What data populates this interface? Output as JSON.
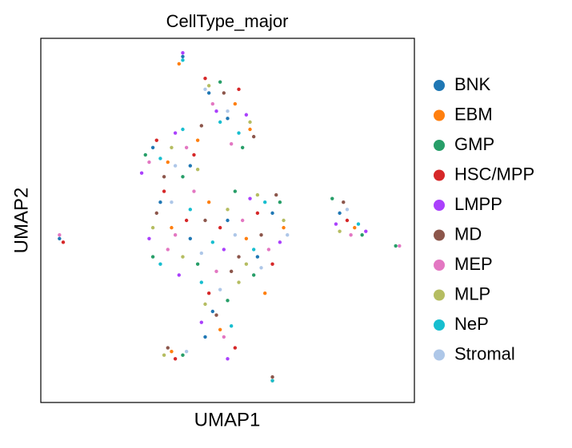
{
  "chart_data": {
    "type": "scatter",
    "title": "CellType_major",
    "x_label": "UMAP1",
    "y_label": "UMAP2",
    "xlim": [
      0,
      100
    ],
    "ylim": [
      0,
      100
    ],
    "series": [
      {
        "name": "BNK",
        "color": "#1f77b4",
        "x": [
          38,
          30,
          40,
          45,
          50,
          32,
          40,
          50,
          58,
          62,
          46,
          80,
          5,
          44
        ],
        "y": [
          95,
          70,
          65,
          85,
          78,
          55,
          45,
          50,
          40,
          52,
          25,
          52,
          45,
          18
        ]
      },
      {
        "name": "EBM",
        "color": "#ff7f0e",
        "x": [
          37,
          34,
          42,
          52,
          56,
          35,
          45,
          55,
          60,
          65,
          48,
          84,
          35,
          62
        ],
        "y": [
          93,
          66,
          72,
          82,
          75,
          48,
          55,
          45,
          30,
          48,
          20,
          48,
          14,
          6
        ]
      },
      {
        "name": "GMP",
        "color": "#279e68",
        "x": [
          28,
          38,
          48,
          54,
          30,
          42,
          52,
          57,
          64,
          50,
          78,
          86,
          95,
          38
        ],
        "y": [
          68,
          62,
          88,
          70,
          40,
          38,
          58,
          35,
          55,
          28,
          56,
          46,
          43,
          13
        ]
      },
      {
        "name": "HSC/MPP",
        "color": "#d62728",
        "x": [
          31,
          41,
          44,
          53,
          33,
          39,
          48,
          58,
          62,
          45,
          52,
          82,
          36,
          6
        ],
        "y": [
          72,
          68,
          89,
          86,
          58,
          50,
          48,
          52,
          38,
          30,
          15,
          50,
          12,
          44
        ]
      },
      {
        "name": "LMPP",
        "color": "#aa40fc",
        "x": [
          27,
          36,
          47,
          55,
          29,
          37,
          49,
          56,
          64,
          43,
          79,
          87,
          38,
          50
        ],
        "y": [
          63,
          74,
          80,
          79,
          45,
          35,
          42,
          56,
          44,
          22,
          49,
          47,
          96,
          12
        ]
      },
      {
        "name": "MD",
        "color": "#8c564b",
        "x": [
          33,
          43,
          49,
          57,
          31,
          44,
          51,
          59,
          63,
          47,
          81,
          34,
          62,
          53
        ],
        "y": [
          62,
          76,
          85,
          73,
          52,
          50,
          36,
          46,
          57,
          24,
          55,
          15,
          7,
          40
        ]
      },
      {
        "name": "MEP",
        "color": "#e377c2",
        "x": [
          29,
          39,
          46,
          51,
          34,
          41,
          47,
          54,
          61,
          49,
          83,
          5,
          96,
          36
        ],
        "y": [
          66,
          70,
          82,
          71,
          42,
          58,
          36,
          50,
          42,
          18,
          46,
          46,
          43,
          46
        ]
      },
      {
        "name": "MLP",
        "color": "#b5bd61",
        "x": [
          35,
          42,
          45,
          56,
          30,
          38,
          50,
          55,
          65,
          44,
          80,
          33,
          53,
          58
        ],
        "y": [
          70,
          64,
          87,
          77,
          48,
          40,
          53,
          38,
          50,
          27,
          47,
          13,
          33,
          57
        ]
      },
      {
        "name": "NeP",
        "color": "#17becf",
        "x": [
          32,
          38,
          48,
          53,
          32,
          40,
          46,
          57,
          60,
          51,
          85,
          38,
          62,
          43
        ],
        "y": [
          67,
          75,
          77,
          74,
          38,
          53,
          44,
          42,
          55,
          21,
          49,
          94,
          6,
          33
        ]
      },
      {
        "name": "Stromal",
        "color": "#aec7e8",
        "x": [
          36,
          44,
          50,
          35,
          43,
          52,
          59,
          48,
          82,
          39,
          66
        ],
        "y": [
          65,
          86,
          80,
          55,
          41,
          46,
          37,
          31,
          53,
          14,
          46
        ]
      }
    ]
  }
}
